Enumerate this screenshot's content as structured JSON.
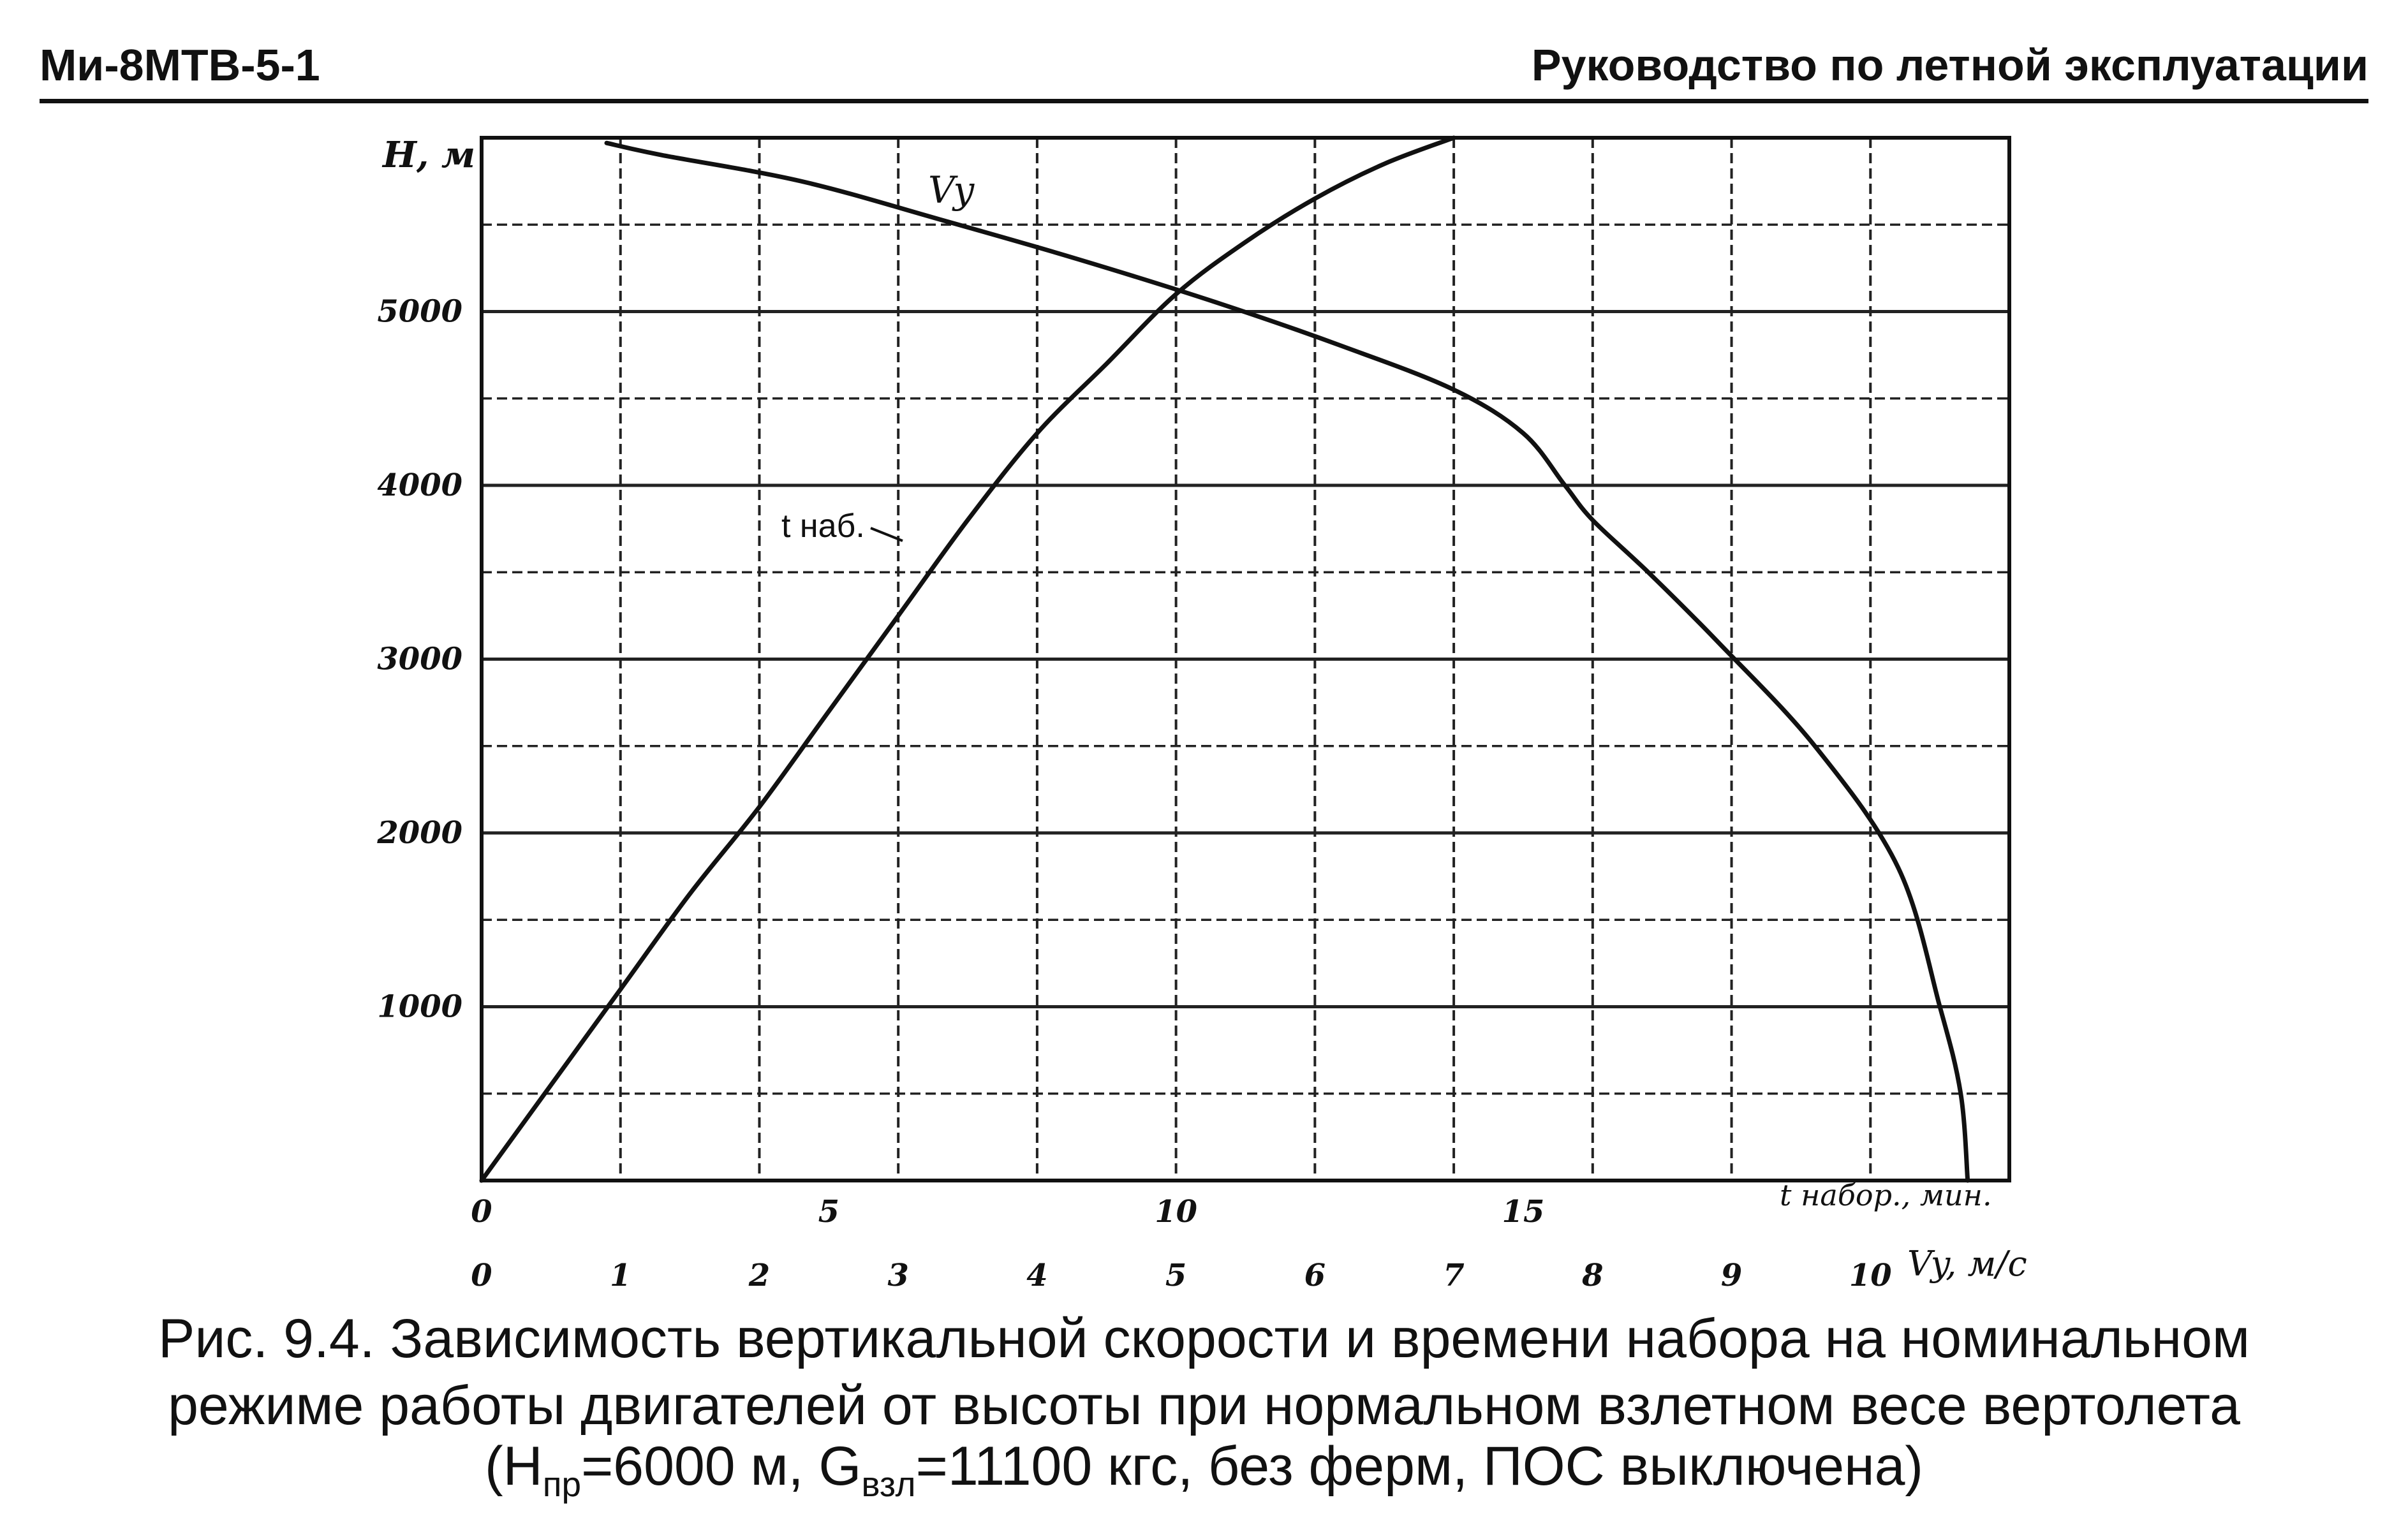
{
  "header": {
    "left": "Ми-8МТВ-5-1",
    "right": "Руководство по летной эксплуатации"
  },
  "caption": {
    "line1": "Рис. 9.4. Зависимость вертикальной скорости и времени набора на номинальном",
    "line2": "режиме работы двигателей от высоты при нормальном взлетном весе вертолета",
    "line3_a": "(Н",
    "line3_sub1": "пр",
    "line3_b": "=6000 м, G",
    "line3_sub2": "взл",
    "line3_c": "=11100 кгс, без ферм, ПОС выключена)"
  },
  "chart_data": {
    "type": "line",
    "ylabel": "Н, м",
    "xlabel_time": "t набор., мин.",
    "xlabel_vy": "Vy, м/с",
    "y_ticks": [
      "1000",
      "2000",
      "3000",
      "4000",
      "5000"
    ],
    "time_ticks": [
      "0",
      "5",
      "10",
      "15"
    ],
    "vy_ticks": [
      "0",
      "1",
      "2",
      "3",
      "4",
      "5",
      "6",
      "7",
      "8",
      "9",
      "10"
    ],
    "ylim": [
      0,
      6000
    ],
    "time_xlim": [
      0,
      22
    ],
    "vy_xlim": [
      0,
      11
    ],
    "grid": true,
    "series": [
      {
        "name": "Vy",
        "x_axis": "vy",
        "x": [
          10.7,
          10.65,
          10.5,
          10.2,
          9.6,
          8.9,
          8.4,
          8.0,
          7.8,
          7.5,
          7.0,
          6.2,
          5.3,
          4.3,
          3.3,
          2.3,
          1.3,
          0.9
        ],
        "y": [
          0,
          500,
          1000,
          1800,
          2500,
          3100,
          3500,
          3800,
          4000,
          4300,
          4550,
          4800,
          5050,
          5300,
          5530,
          5750,
          5900,
          5970
        ]
      },
      {
        "name": "t наб.",
        "x_axis": "time",
        "x": [
          0,
          1.0,
          2.0,
          3.0,
          4.0,
          5.0,
          6.0,
          7.0,
          8.0,
          9.0,
          10.0,
          11.0,
          12.0,
          13.0,
          14.0
        ],
        "y": [
          0,
          550,
          1100,
          1650,
          2150,
          2700,
          3250,
          3800,
          4300,
          4700,
          5100,
          5400,
          5650,
          5850,
          6000
        ]
      }
    ]
  }
}
